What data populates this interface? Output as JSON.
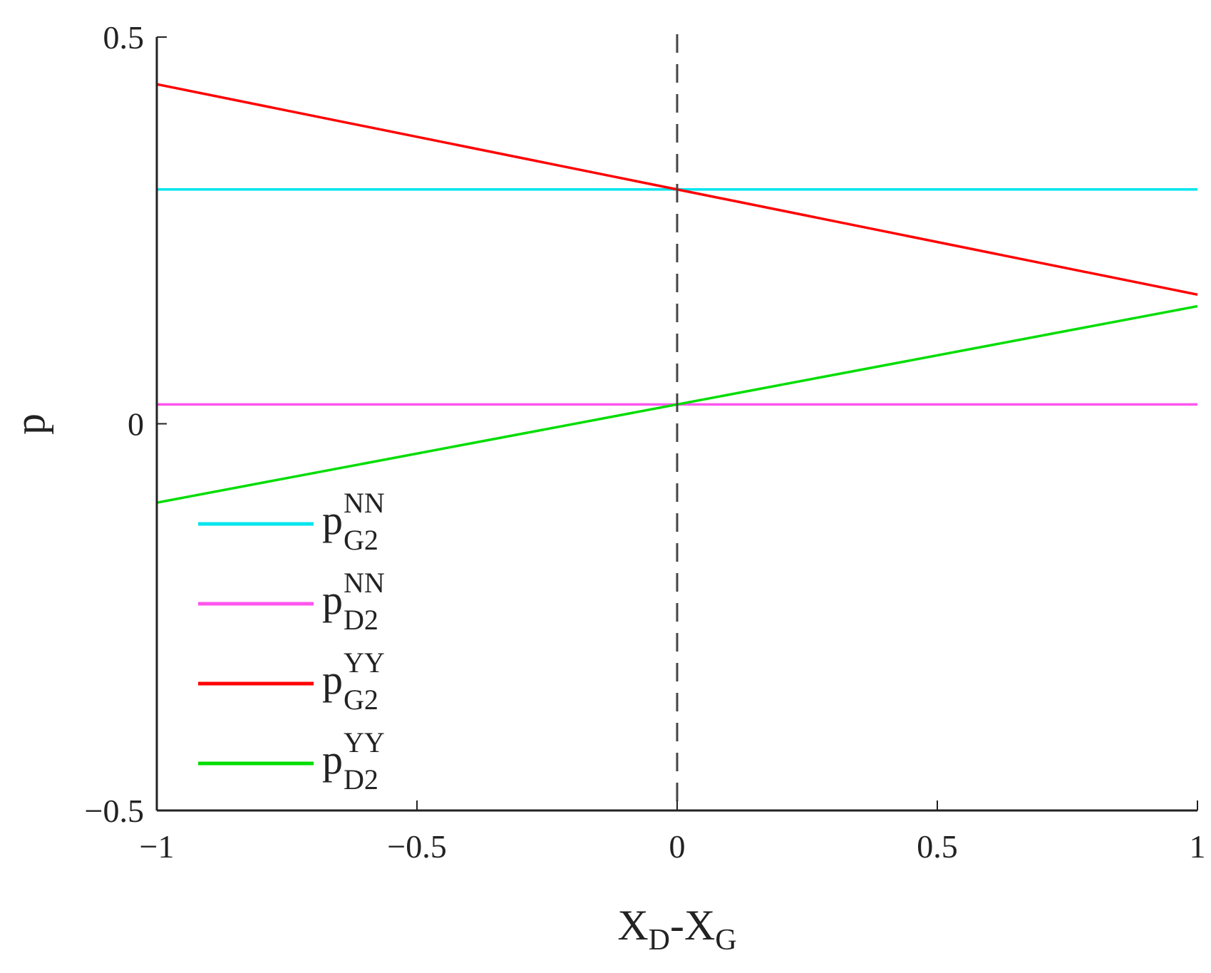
{
  "chart_data": {
    "type": "line",
    "xlabel": {
      "main": "X",
      "sub1": "D",
      "mid": "-X",
      "sub2": "G"
    },
    "ylabel": "p",
    "xlim": [
      -1,
      1
    ],
    "ylim": [
      -0.5,
      0.5
    ],
    "xticks": [
      -1,
      -0.5,
      0,
      0.5,
      1
    ],
    "xtick_labels": [
      "−1",
      "−0.5",
      "0",
      "0.5",
      "1"
    ],
    "yticks": [
      -0.5,
      0,
      0.5
    ],
    "ytick_labels": [
      "−0.5",
      "0",
      "0.5"
    ],
    "grid": false,
    "legend_position": "lower-left",
    "vline": {
      "x": 0,
      "style": "dashed",
      "color": "#444444"
    },
    "series": [
      {
        "name": "p",
        "sup": "NN",
        "sub": "G2",
        "color": "#00e5ee",
        "x": [
          -1,
          1
        ],
        "y": [
          0.303,
          0.303
        ]
      },
      {
        "name": "p",
        "sup": "NN",
        "sub": "D2",
        "color": "#ff55ee",
        "x": [
          -1,
          1
        ],
        "y": [
          0.025,
          0.025
        ]
      },
      {
        "name": "p",
        "sup": "YY",
        "sub": "G2",
        "color": "#ff0000",
        "x": [
          -1,
          1
        ],
        "y": [
          0.439,
          0.167
        ]
      },
      {
        "name": "p",
        "sup": "YY",
        "sub": "D2",
        "color": "#00dd00",
        "x": [
          -1,
          1
        ],
        "y": [
          -0.102,
          0.152
        ]
      }
    ]
  }
}
